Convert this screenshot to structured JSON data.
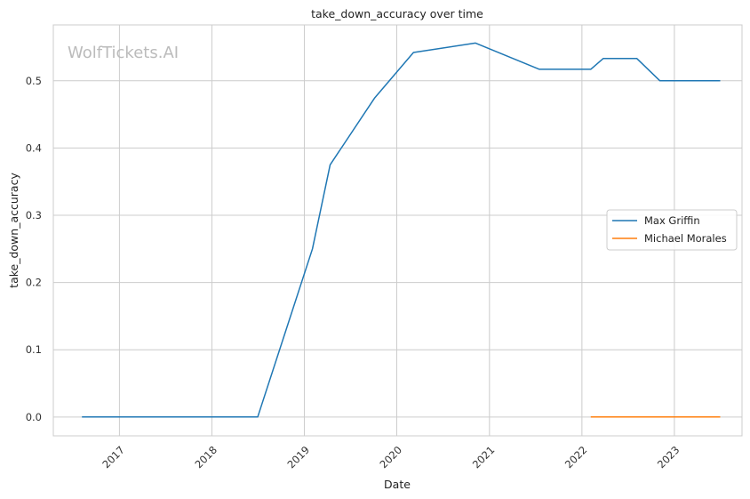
{
  "watermark": "WolfTickets.AI",
  "chart_data": {
    "type": "line",
    "title": "take_down_accuracy over time",
    "xlabel": "Date",
    "ylabel": "take_down_accuracy",
    "xlim": [
      "2016-04-15",
      "2023-09-25"
    ],
    "ylim": [
      -0.028,
      0.583
    ],
    "x_ticks": [
      "2017",
      "2018",
      "2019",
      "2020",
      "2021",
      "2022",
      "2023"
    ],
    "y_ticks": [
      "0.0",
      "0.1",
      "0.2",
      "0.3",
      "0.4",
      "0.5"
    ],
    "grid": true,
    "legend_position": "center-right",
    "series": [
      {
        "name": "Max Griffin",
        "color": "#1f77b4",
        "points": [
          [
            "2016-08-06",
            0.0
          ],
          [
            "2018-07-01",
            0.0
          ],
          [
            "2019-02-02",
            0.25
          ],
          [
            "2019-04-13",
            0.375
          ],
          [
            "2019-10-05",
            0.474
          ],
          [
            "2020-03-07",
            0.542
          ],
          [
            "2020-11-07",
            0.556
          ],
          [
            "2021-07-17",
            0.517
          ],
          [
            "2022-02-05",
            0.517
          ],
          [
            "2022-03-26",
            0.533
          ],
          [
            "2022-08-06",
            0.533
          ],
          [
            "2022-11-05",
            0.5
          ],
          [
            "2023-07-01",
            0.5
          ]
        ]
      },
      {
        "name": "Michael Morales",
        "color": "#ff7f0e",
        "points": [
          [
            "2022-02-05",
            0.0
          ],
          [
            "2022-06-11",
            0.0
          ],
          [
            "2022-12-17",
            0.0
          ],
          [
            "2023-07-01",
            0.0
          ]
        ]
      }
    ]
  }
}
